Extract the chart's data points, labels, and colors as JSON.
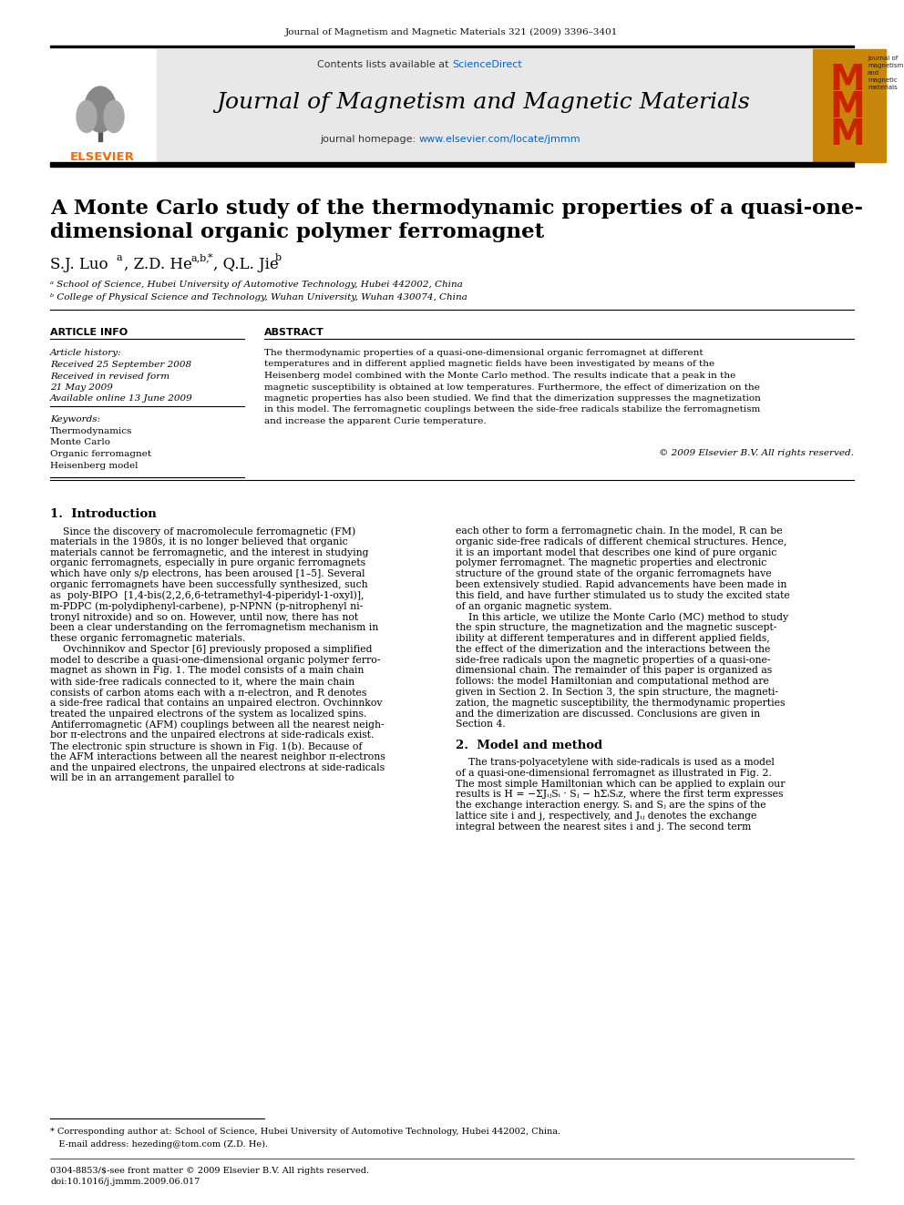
{
  "journal_header_text": "Journal of Magnetism and Magnetic Materials 321 (2009) 3396–3401",
  "contents_line": "Contents lists available at ScienceDirect",
  "journal_title": "Journal of Magnetism and Magnetic Materials",
  "journal_homepage": "journal homepage: www.elsevier.com/locate/jmmm",
  "paper_title_line1": "A Monte Carlo study of the thermodynamic properties of a quasi-one-",
  "paper_title_line2": "dimensional organic polymer ferromagnet",
  "affil_a": "ᵃ School of Science, Hubei University of Automotive Technology, Hubei 442002, China",
  "affil_b": "ᵇ College of Physical Science and Technology, Wuhan University, Wuhan 430074, China",
  "article_info_header": "ARTICLE INFO",
  "abstract_header": "ABSTRACT",
  "article_history_label": "Article history:",
  "received_line": "Received 25 September 2008",
  "revised_line": "Received in revised form",
  "revised_date": "21 May 2009",
  "available_line": "Available online 13 June 2009",
  "keywords_label": "Keywords:",
  "keywords": [
    "Thermodynamics",
    "Monte Carlo",
    "Organic ferromagnet",
    "Heisenberg model"
  ],
  "copyright_line": "© 2009 Elsevier B.V. All rights reserved.",
  "section1_title": "1.  Introduction",
  "section2_title": "2.  Model and method",
  "footnote_star": "* Corresponding author at: School of Science, Hubei University of Automotive Technology, Hubei 442002, China.",
  "footnote_email": "E-mail address: hezeding@tom.com (Z.D. He).",
  "footer_issn": "0304-8853/$-see front matter © 2009 Elsevier B.V. All rights reserved.",
  "footer_doi": "doi:10.1016/j.jmmm.2009.06.017",
  "bg_color": "#ffffff",
  "elsevier_color": "#ff6600",
  "sciencedirect_color": "#0066cc",
  "link_color": "#0066cc",
  "journal_logo_bg": "#c8860a",
  "journal_logo_red": "#cc2200"
}
